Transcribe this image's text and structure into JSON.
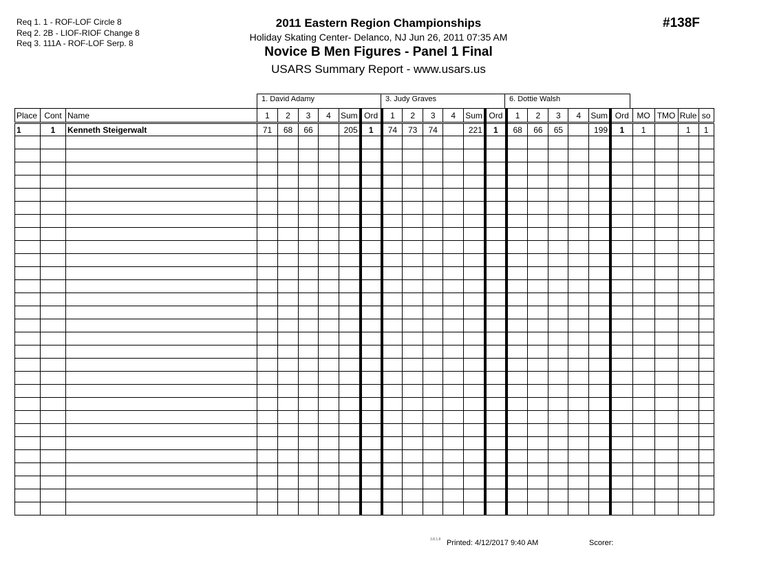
{
  "requirements": [
    "Req  1.  1 - ROF-LOF Circle 8",
    "Req  2.  2B - LIOF-RIOF Change 8",
    "Req  3.  111A - ROF-LOF Serp. 8"
  ],
  "header": {
    "title": "2011 Eastern Region Championships",
    "venue": "Holiday Skating Center-  Delanco, NJ  Jun 26, 2011  07:35 AM",
    "event": "Novice B Men Figures - Panel 1 Final",
    "report": "USARS Summary Report - www.usars.us",
    "event_number": "#138F"
  },
  "judges": [
    "1.  David Adamy",
    "3.  Judy Graves",
    "6.  Dottie Walsh"
  ],
  "columns": [
    "Place",
    "Cont",
    "Name",
    "1",
    "2",
    "3",
    "4",
    "Sum",
    "Ord",
    "1",
    "2",
    "3",
    "4",
    "Sum",
    "Ord",
    "1",
    "2",
    "3",
    "4",
    "Sum",
    "Ord",
    "MO",
    "TMO",
    "Rule",
    "so"
  ],
  "rows": [
    [
      "1",
      "1",
      "Kenneth Steigerwalt",
      "71",
      "68",
      "66",
      "",
      "205",
      "1",
      "74",
      "73",
      "74",
      "",
      "221",
      "1",
      "68",
      "66",
      "65",
      "",
      "199",
      "1",
      "1",
      "",
      "1",
      "1"
    ]
  ],
  "empty_row_count": 29,
  "footer": {
    "version": "3.8.1.8",
    "printed": "Printed:  4/12/2017  9:40 AM",
    "scorer": "Scorer:"
  }
}
